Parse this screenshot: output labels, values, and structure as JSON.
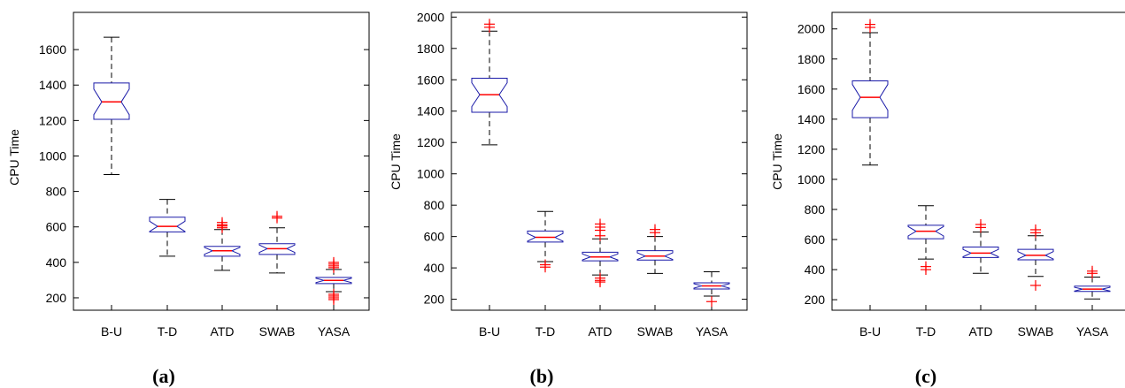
{
  "colors": {
    "box": "#1a1aa8",
    "median": "#ff0000",
    "outlier": "#ff0000",
    "whisker": "#000000",
    "axis": "#000000"
  },
  "chart_data": [
    {
      "type": "box",
      "caption": "(a)",
      "ylabel": "CPU Time",
      "categories": [
        "B-U",
        "T-D",
        "ATD",
        "SWAB",
        "YASA"
      ],
      "yticks": [
        200,
        400,
        600,
        800,
        1000,
        1200,
        1400,
        1600
      ],
      "ylim": [
        130,
        1810
      ],
      "notched": true,
      "boxes": [
        {
          "min": 895,
          "q1": 1207,
          "median": 1305,
          "q3": 1412,
          "max": 1670,
          "outliers": []
        },
        {
          "min": 435,
          "q1": 572,
          "median": 603,
          "q3": 655,
          "max": 755,
          "outliers": []
        },
        {
          "min": 355,
          "q1": 435,
          "median": 465,
          "q3": 490,
          "max": 585,
          "outliers": [
            595,
            605,
            612,
            625
          ]
        },
        {
          "min": 340,
          "q1": 445,
          "median": 477,
          "q3": 505,
          "max": 595,
          "outliers": [
            650,
            660
          ]
        },
        {
          "min": 235,
          "q1": 280,
          "median": 298,
          "q3": 315,
          "max": 360,
          "outliers": [
            190,
            200,
            210,
            220,
            370,
            380,
            390,
            400
          ]
        }
      ]
    },
    {
      "type": "box",
      "caption": "(b)",
      "ylabel": "CPU Time",
      "categories": [
        "B-U",
        "T-D",
        "ATD",
        "SWAB",
        "YASA"
      ],
      "yticks": [
        200,
        400,
        600,
        800,
        1000,
        1200,
        1400,
        1600,
        1800,
        2000
      ],
      "ylim": [
        130,
        2030
      ],
      "notched": true,
      "boxes": [
        {
          "min": 1185,
          "q1": 1393,
          "median": 1505,
          "q3": 1610,
          "max": 1910,
          "outliers": [
            1935,
            1955
          ]
        },
        {
          "min": 440,
          "q1": 565,
          "median": 595,
          "q3": 635,
          "max": 760,
          "outliers": [
            405,
            420
          ]
        },
        {
          "min": 355,
          "q1": 445,
          "median": 470,
          "q3": 500,
          "max": 585,
          "outliers": [
            310,
            320,
            335,
            605,
            640,
            660,
            680
          ]
        },
        {
          "min": 365,
          "q1": 450,
          "median": 475,
          "q3": 510,
          "max": 600,
          "outliers": [
            625,
            645
          ]
        },
        {
          "min": 220,
          "q1": 265,
          "median": 285,
          "q3": 305,
          "max": 375,
          "outliers": [
            185
          ]
        }
      ]
    },
    {
      "type": "box",
      "caption": "(c)",
      "ylabel": "CPU Time",
      "categories": [
        "B-U",
        "T-D",
        "ATD",
        "SWAB",
        "YASA"
      ],
      "yticks": [
        200,
        400,
        600,
        800,
        1000,
        1200,
        1400,
        1600,
        1800,
        2000
      ],
      "ylim": [
        130,
        2110
      ],
      "notched": true,
      "boxes": [
        {
          "min": 1095,
          "q1": 1410,
          "median": 1545,
          "q3": 1655,
          "max": 1975,
          "outliers": [
            2010,
            2030
          ]
        },
        {
          "min": 470,
          "q1": 605,
          "median": 655,
          "q3": 695,
          "max": 825,
          "outliers": [
            400,
            420
          ]
        },
        {
          "min": 375,
          "q1": 480,
          "median": 510,
          "q3": 550,
          "max": 650,
          "outliers": [
            680,
            700
          ]
        },
        {
          "min": 355,
          "q1": 465,
          "median": 495,
          "q3": 535,
          "max": 625,
          "outliers": [
            295,
            645,
            665
          ]
        },
        {
          "min": 205,
          "q1": 255,
          "median": 270,
          "q3": 290,
          "max": 350,
          "outliers": [
            375,
            390
          ]
        }
      ]
    }
  ]
}
